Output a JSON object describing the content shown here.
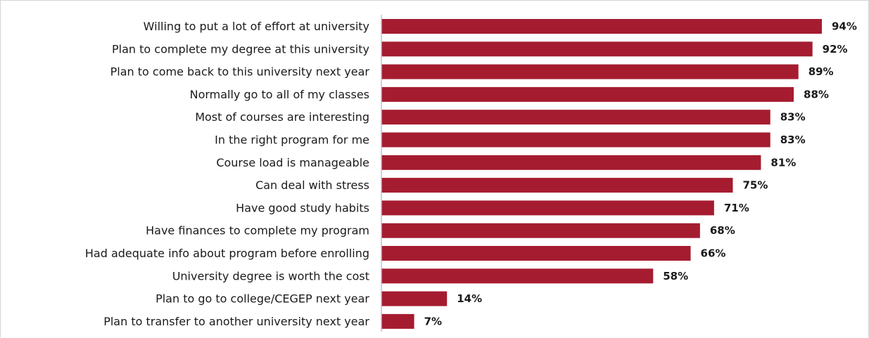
{
  "chart_data": {
    "type": "bar",
    "orientation": "horizontal",
    "categories": [
      "Willing to put a lot of effort at university",
      "Plan to complete my degree at this university",
      "Plan to come back to this university next year",
      "Normally go to all of my classes",
      "Most of courses are interesting",
      "In the right program for me",
      "Course load is manageable",
      "Can deal with stress",
      "Have good study habits",
      "Have finances to complete my program",
      "Had adequate info about program before enrolling",
      "University degree is worth the cost",
      "Plan to go to college/CEGEP next year",
      "Plan to transfer to another university next year"
    ],
    "values": [
      94,
      92,
      89,
      88,
      83,
      83,
      81,
      75,
      71,
      68,
      66,
      58,
      14,
      7
    ],
    "value_labels": [
      "94%",
      "92%",
      "89%",
      "88%",
      "83%",
      "83%",
      "81%",
      "75%",
      "71%",
      "68%",
      "66%",
      "58%",
      "14%",
      "7%"
    ],
    "unit": "%",
    "xlim": [
      0,
      100
    ],
    "bar_color": "#a51c30",
    "axis_color": "#b8c4d6",
    "grid": false,
    "legend": "none"
  }
}
